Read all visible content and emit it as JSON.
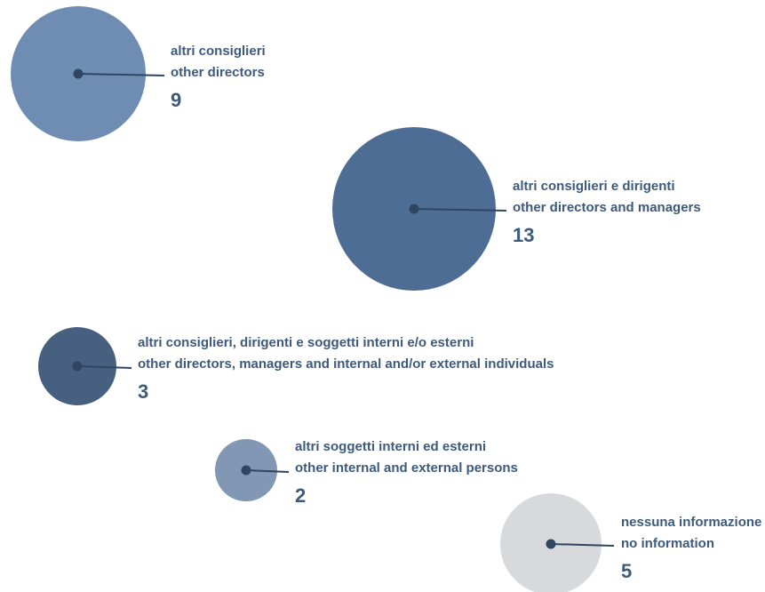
{
  "chart_data": {
    "type": "bubble",
    "items": [
      {
        "label_it": "altri consiglieri",
        "label_en": "other directors",
        "value": 9,
        "color": "#6f8db2"
      },
      {
        "label_it": "altri consiglieri e dirigenti",
        "label_en": "other directors and managers",
        "value": 13,
        "color": "#4e6d94"
      },
      {
        "label_it": "altri consiglieri, dirigenti e soggetti  interni e/o esterni",
        "label_en": "other directors, managers and internal and/or external individuals",
        "value": 3,
        "color": "#48607f"
      },
      {
        "label_it": "altri soggetti  interni ed esterni",
        "label_en": "other internal and external persons",
        "value": 2,
        "color": "#8197b4"
      },
      {
        "label_it": "nessuna informazione",
        "label_en": "no information",
        "value": 5,
        "color": "#d7d9dc"
      }
    ]
  }
}
